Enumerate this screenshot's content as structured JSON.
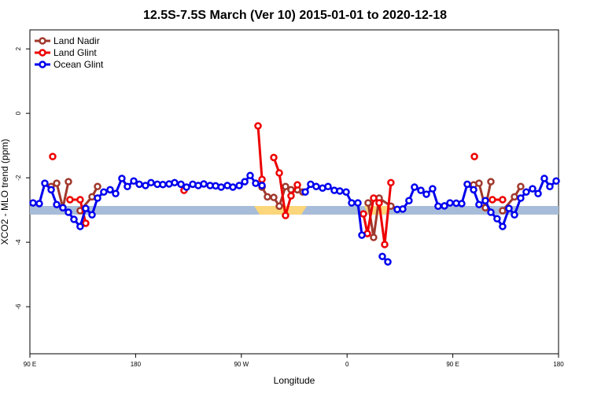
{
  "chart_data": {
    "type": "line",
    "title": "12.5S-7.5S March (Ver 10)   2015-01-01 to 2020-12-18",
    "x_label": "Longitude",
    "y_label": "XCO2 - MLO trend (ppm)",
    "xlim": [
      90,
      540
    ],
    "xticks": [
      {
        "value": 90,
        "label": "90 E"
      },
      180,
      {
        "value": 270,
        "label": "90 W"
      },
      {
        "value": 360,
        "label": "0"
      },
      {
        "value": 450,
        "label": "90 E"
      },
      {
        "value": 540,
        "label": "180"
      }
    ],
    "ylim": [
      -7.46,
      2.59
    ],
    "yticks": [
      2,
      0,
      -2,
      -4,
      -6
    ],
    "legend": "top-left",
    "series": [
      {
        "name": "Land Nadir",
        "color": "#a0382c",
        "x": [
          108.1,
          112.8,
          118.1,
          122.8,
          128,
          132.8,
          142.9,
          147.6,
          200,
          287.6,
          292.2,
          297.6,
          302.3,
          307.6,
          312.3,
          317.7,
          322.3,
          350,
          377.9,
          382.6,
          387.3,
          397.3,
          430,
          467.7,
          472.3,
          477.7,
          482.4,
          487,
          492.4,
          502.5,
          507.8
        ],
        "values": [
          -2.27,
          -2.17,
          -2.93,
          -2.12,
          null,
          -3.02,
          -2.59,
          -2.27,
          null,
          -2.29,
          -2.59,
          -2.61,
          -2.88,
          -2.27,
          -2.37,
          -2.37,
          -2.44,
          null,
          -2.78,
          -3.85,
          -2.63,
          -2.88,
          null,
          -2.22,
          -2.17,
          -2.93,
          -2.12,
          null,
          -3.02,
          -2.59,
          -2.27
        ]
      },
      {
        "name": "Land Glint",
        "color": "#ee0000",
        "x": [
          109.4,
          117,
          124.1,
          132.8,
          137.5,
          180,
          221.2,
          250,
          284.2,
          287.6,
          292,
          297.6,
          302.3,
          307.6,
          312.3,
          317.7,
          350,
          373.9,
          377.3,
          382.6,
          387.3,
          392.0,
          397.3,
          430,
          468.4,
          475,
          483.7,
          492.4
        ],
        "values": [
          -1.34,
          null,
          -2.68,
          -2.68,
          -3.41,
          null,
          -2.39,
          null,
          -0.39,
          -2.05,
          null,
          -1.37,
          -1.85,
          -3.17,
          -2.56,
          -2.22,
          null,
          -3.12,
          -3.73,
          -2.63,
          -2.78,
          -4.07,
          -2.15,
          null,
          -1.34,
          null,
          -2.68,
          -2.68
        ]
      },
      {
        "name": "Ocean Glint",
        "color": "#0000ee",
        "x": [
          92.7,
          98.0,
          102.7,
          108.1,
          112.8,
          118.1,
          122.8,
          127.5,
          132.8,
          137.5,
          142.9,
          147.6,
          152.9,
          158.3,
          163.0,
          168.3,
          173.0,
          178.4,
          183.1,
          188.4,
          193.1,
          198.5,
          203.2,
          208.5,
          213.2,
          218.6,
          223.3,
          228.6,
          233.3,
          238.0,
          243.4,
          248.1,
          252.8,
          258.1,
          262.8,
          268.2,
          272.9,
          277.5,
          282.2,
          287.6,
          305,
          324.4,
          329.0,
          333.7,
          339.1,
          343.8,
          349.1,
          353.8,
          359.2,
          363.9,
          369.2,
          372.6,
          380,
          390.0,
          394.7,
          398,
          402.7,
          407.4,
          412.7,
          417.4,
          422.8,
          427.5,
          432.8,
          437.5,
          442.9,
          447.6,
          452.9,
          457.6,
          462.3,
          467.7,
          472.3,
          477.7,
          482.4,
          487.7,
          492.4,
          497.8,
          502.5,
          507.8,
          512.5,
          517.9,
          522.6,
          527.9,
          532.6,
          538.0
        ],
        "values": [
          -2.78,
          -2.8,
          -2.17,
          -2.37,
          -2.83,
          -2.93,
          -3.07,
          -3.29,
          -3.51,
          -2.95,
          -3.15,
          -2.63,
          -2.44,
          -2.37,
          -2.49,
          -2.02,
          -2.27,
          -2.1,
          -2.2,
          -2.24,
          -2.15,
          -2.2,
          -2.21,
          -2.19,
          -2.15,
          -2.2,
          -2.29,
          -2.2,
          -2.24,
          -2.19,
          -2.24,
          -2.25,
          -2.29,
          -2.24,
          -2.29,
          -2.24,
          -2.12,
          -1.93,
          -2.17,
          -2.24,
          null,
          -2.44,
          -2.2,
          -2.27,
          -2.32,
          -2.27,
          -2.39,
          -2.41,
          -2.44,
          -2.78,
          -2.78,
          -3.78,
          null,
          -4.44,
          -4.61,
          null,
          -2.98,
          -2.97,
          -2.71,
          -2.29,
          -2.39,
          -2.51,
          -2.34,
          -2.88,
          -2.87,
          -2.78,
          -2.79,
          -2.8,
          -2.2,
          -2.37,
          -2.83,
          -2.71,
          -3.07,
          -3.27,
          -3.51,
          -2.95,
          -3.15,
          -2.63,
          -2.44,
          -2.34,
          -2.49,
          -2.02,
          -2.27,
          -2.1
        ]
      }
    ]
  }
}
